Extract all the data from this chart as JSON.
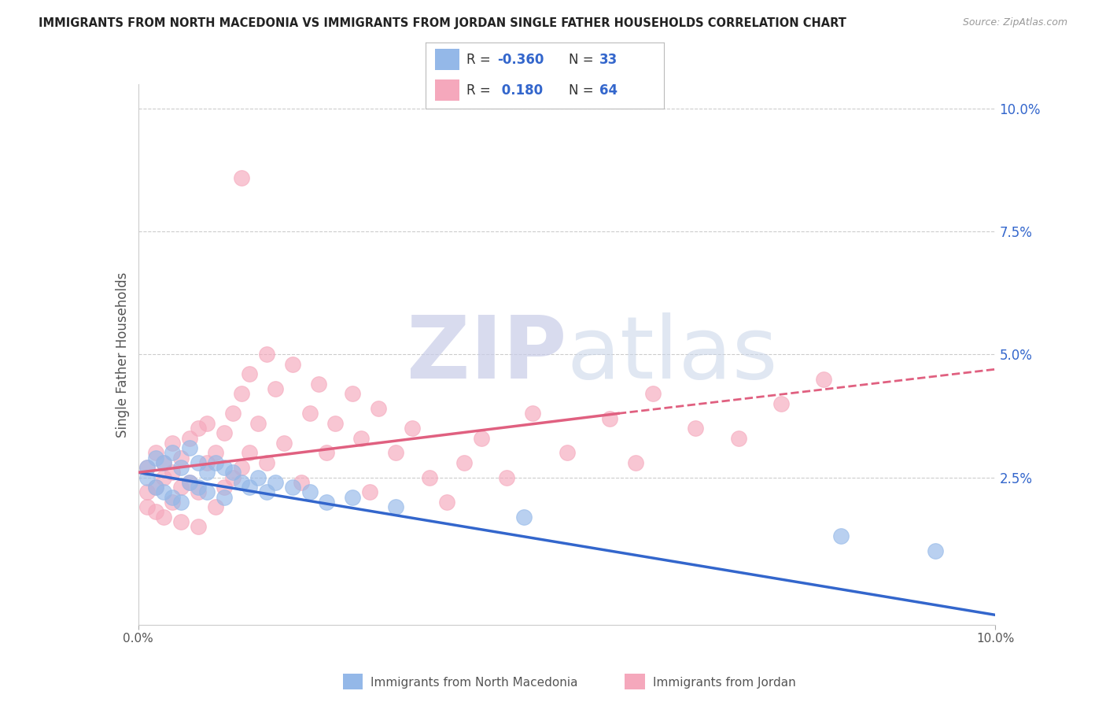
{
  "title": "IMMIGRANTS FROM NORTH MACEDONIA VS IMMIGRANTS FROM JORDAN SINGLE FATHER HOUSEHOLDS CORRELATION CHART",
  "source": "Source: ZipAtlas.com",
  "ylabel": "Single Father Households",
  "x_min": 0.0,
  "x_max": 0.1,
  "y_min": -0.005,
  "y_max": 0.105,
  "y_ticks_right": [
    0.025,
    0.05,
    0.075,
    0.1
  ],
  "y_tick_labels_right": [
    "2.5%",
    "5.0%",
    "7.5%",
    "10.0%"
  ],
  "color_blue": "#94B8E8",
  "color_pink": "#F5A8BC",
  "color_blue_line": "#3366CC",
  "color_pink_line": "#E06080",
  "color_right_tick": "#3366CC",
  "color_grid": "#CCCCCC",
  "blue_line_x0": 0.0,
  "blue_line_y0": 0.026,
  "blue_line_x1": 0.1,
  "blue_line_y1": -0.003,
  "pink_line_solid_x0": 0.0,
  "pink_line_solid_y0": 0.026,
  "pink_line_solid_x1": 0.056,
  "pink_line_solid_y1": 0.038,
  "pink_line_dashed_x0": 0.056,
  "pink_line_dashed_y0": 0.038,
  "pink_line_dashed_x1": 0.1,
  "pink_line_dashed_y1": 0.047,
  "blue_pts_x": [
    0.001,
    0.001,
    0.002,
    0.002,
    0.003,
    0.003,
    0.004,
    0.004,
    0.005,
    0.005,
    0.006,
    0.006,
    0.007,
    0.007,
    0.008,
    0.008,
    0.009,
    0.01,
    0.01,
    0.011,
    0.012,
    0.013,
    0.014,
    0.015,
    0.016,
    0.018,
    0.02,
    0.022,
    0.025,
    0.03,
    0.045,
    0.082,
    0.093
  ],
  "blue_pts_y": [
    0.027,
    0.025,
    0.029,
    0.023,
    0.028,
    0.022,
    0.03,
    0.021,
    0.027,
    0.02,
    0.031,
    0.024,
    0.028,
    0.023,
    0.026,
    0.022,
    0.028,
    0.027,
    0.021,
    0.026,
    0.024,
    0.023,
    0.025,
    0.022,
    0.024,
    0.023,
    0.022,
    0.02,
    0.021,
    0.019,
    0.017,
    0.013,
    0.01
  ],
  "pink_pts_x": [
    0.001,
    0.001,
    0.001,
    0.002,
    0.002,
    0.002,
    0.003,
    0.003,
    0.003,
    0.004,
    0.004,
    0.004,
    0.005,
    0.005,
    0.005,
    0.006,
    0.006,
    0.007,
    0.007,
    0.007,
    0.008,
    0.008,
    0.009,
    0.009,
    0.01,
    0.01,
    0.011,
    0.011,
    0.012,
    0.012,
    0.013,
    0.013,
    0.014,
    0.015,
    0.015,
    0.016,
    0.017,
    0.018,
    0.019,
    0.02,
    0.021,
    0.022,
    0.023,
    0.025,
    0.026,
    0.027,
    0.028,
    0.03,
    0.032,
    0.034,
    0.036,
    0.038,
    0.04,
    0.043,
    0.046,
    0.05,
    0.055,
    0.058,
    0.06,
    0.065,
    0.07,
    0.075,
    0.08,
    0.012
  ],
  "pink_pts_y": [
    0.027,
    0.022,
    0.019,
    0.03,
    0.023,
    0.018,
    0.028,
    0.025,
    0.017,
    0.032,
    0.026,
    0.02,
    0.029,
    0.023,
    0.016,
    0.033,
    0.024,
    0.035,
    0.022,
    0.015,
    0.028,
    0.036,
    0.03,
    0.019,
    0.034,
    0.023,
    0.038,
    0.025,
    0.042,
    0.027,
    0.046,
    0.03,
    0.036,
    0.05,
    0.028,
    0.043,
    0.032,
    0.048,
    0.024,
    0.038,
    0.044,
    0.03,
    0.036,
    0.042,
    0.033,
    0.022,
    0.039,
    0.03,
    0.035,
    0.025,
    0.02,
    0.028,
    0.033,
    0.025,
    0.038,
    0.03,
    0.037,
    0.028,
    0.042,
    0.035,
    0.033,
    0.04,
    0.045,
    0.086
  ]
}
